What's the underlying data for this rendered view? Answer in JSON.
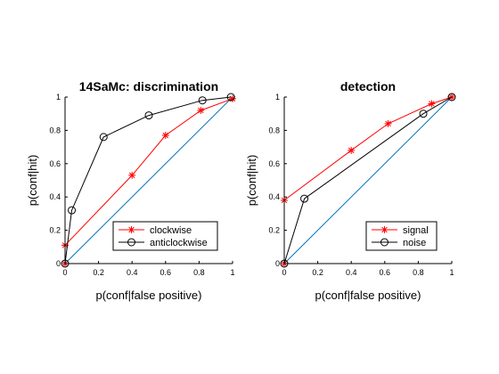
{
  "chart_data": [
    {
      "type": "line",
      "title": "14SaMc: discrimination",
      "xlabel": "p(conf|false positive)",
      "ylabel": "p(conf|hit)",
      "xlim": [
        0,
        1
      ],
      "ylim": [
        0,
        1
      ],
      "xticks": [
        "0",
        "0.2",
        "0.4",
        "0.6",
        "0.8",
        "1"
      ],
      "yticks": [
        "0",
        "0.2",
        "0.4",
        "0.6",
        "0.8",
        "1"
      ],
      "legend_position": "bottom-right",
      "diagonal_color": "#0072BD",
      "series": [
        {
          "name": "clockwise",
          "color": "#FF0000",
          "marker": "asterisk",
          "x": [
            0,
            0,
            0.4,
            0.6,
            0.81,
            1
          ],
          "y": [
            0,
            0.11,
            0.53,
            0.77,
            0.92,
            0.99
          ]
        },
        {
          "name": "anticlockwise",
          "color": "#000000",
          "marker": "circle",
          "x": [
            0,
            0.04,
            0.23,
            0.5,
            0.82,
            0.99
          ],
          "y": [
            0,
            0.32,
            0.76,
            0.89,
            0.98,
            1
          ]
        }
      ]
    },
    {
      "type": "line",
      "title": "detection",
      "xlabel": "p(conf|false positive)",
      "ylabel": "p(conf|hit)",
      "xlim": [
        0,
        1
      ],
      "ylim": [
        0,
        1
      ],
      "xticks": [
        "0",
        "0.2",
        "0.4",
        "0.6",
        "0.8",
        "1"
      ],
      "yticks": [
        "0",
        "0.2",
        "0.4",
        "0.6",
        "0.8",
        "1"
      ],
      "legend_position": "bottom-right",
      "diagonal_color": "#0072BD",
      "series": [
        {
          "name": "signal",
          "color": "#FF0000",
          "marker": "asterisk",
          "x": [
            0,
            0,
            0.4,
            0.62,
            0.88,
            1
          ],
          "y": [
            0,
            0.38,
            0.68,
            0.84,
            0.96,
            1
          ]
        },
        {
          "name": "noise",
          "color": "#000000",
          "marker": "circle",
          "x": [
            0,
            0.12,
            0.83,
            1
          ],
          "y": [
            0,
            0.39,
            0.9,
            1
          ]
        }
      ]
    }
  ]
}
